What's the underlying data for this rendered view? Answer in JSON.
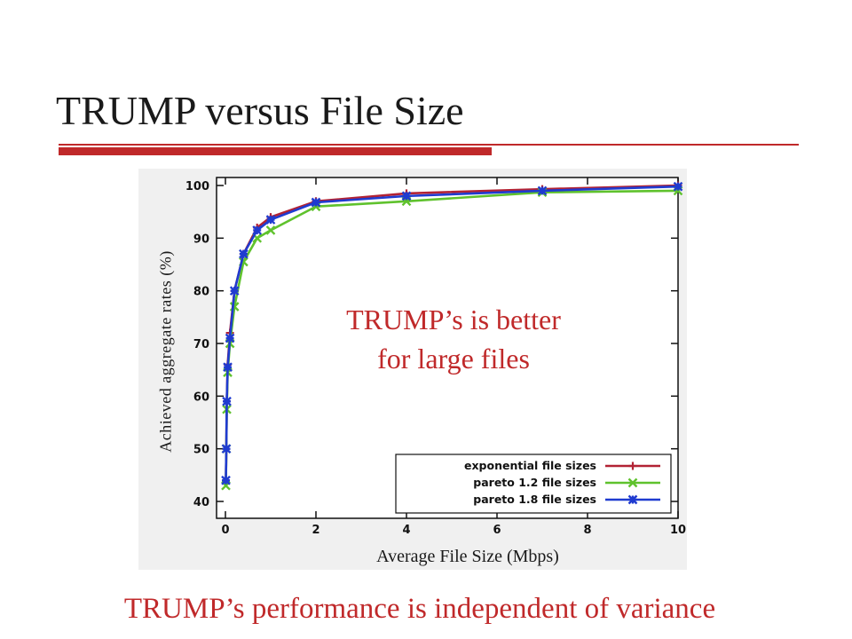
{
  "slide": {
    "title": "TRUMP versus File Size",
    "callout_line1": "TRUMP’s is better",
    "callout_line2": "for large files",
    "footer": "TRUMP’s performance is independent of variance"
  },
  "colors": {
    "accent": "#c0292a",
    "series_exponential": "#b22234",
    "series_pareto12": "#5fc22d",
    "series_pareto18": "#1f3bd0"
  },
  "chart_data": {
    "type": "line",
    "title": "",
    "xlabel": "Average File Size (Mbps)",
    "ylabel": "Achieved aggregate rates (%)",
    "xlim": [
      0,
      10
    ],
    "ylim": [
      40,
      100
    ],
    "xticks": [
      0,
      2,
      4,
      6,
      8,
      10
    ],
    "yticks": [
      40,
      50,
      60,
      70,
      80,
      90,
      100
    ],
    "grid": false,
    "legend_position": "bottom-right",
    "series": [
      {
        "name": "exponential file sizes",
        "marker": "plus",
        "color": "#b22234",
        "x": [
          0.01,
          0.02,
          0.03,
          0.05,
          0.1,
          0.2,
          0.4,
          0.7,
          1,
          2,
          4,
          7,
          10
        ],
        "y": [
          44,
          50,
          59,
          66,
          72,
          80,
          87,
          92,
          94,
          97,
          98.5,
          99.3,
          100
        ]
      },
      {
        "name": "pareto 1.2 file sizes",
        "marker": "x",
        "color": "#5fc22d",
        "x": [
          0.01,
          0.02,
          0.03,
          0.05,
          0.1,
          0.2,
          0.4,
          0.7,
          1,
          2,
          4,
          7,
          10
        ],
        "y": [
          43,
          50,
          57.5,
          64.5,
          70,
          77,
          85.5,
          90,
          91.5,
          96,
          97,
          98.7,
          99
        ]
      },
      {
        "name": "pareto 1.8 file sizes",
        "marker": "star",
        "color": "#1f3bd0",
        "x": [
          0.01,
          0.02,
          0.03,
          0.05,
          0.1,
          0.2,
          0.4,
          0.7,
          1,
          2,
          4,
          7,
          10
        ],
        "y": [
          44,
          50,
          59,
          65.5,
          71,
          80,
          87,
          91.5,
          93.5,
          96.8,
          98,
          99,
          99.8
        ]
      }
    ]
  }
}
